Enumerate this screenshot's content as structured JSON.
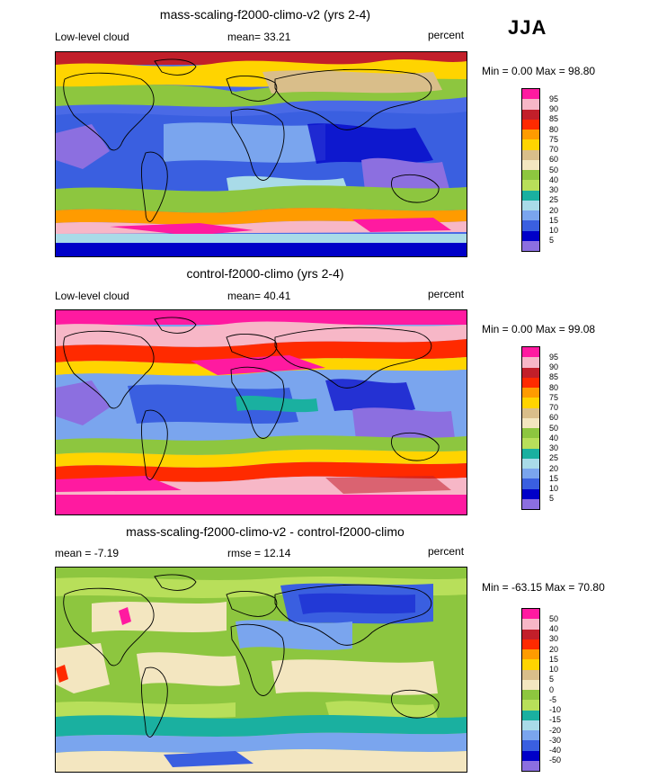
{
  "season": "JJA",
  "panels": [
    {
      "title": "mass-scaling-f2000-climo-v2 (yrs 2-4)",
      "left_label": "Low-level cloud",
      "center_label": "mean=  33.21",
      "right_label": "percent",
      "minmax": "Min =   0.00 Max =  98.80",
      "levels": [
        "95",
        "90",
        "85",
        "80",
        "75",
        "70",
        "60",
        "50",
        "40",
        "30",
        "25",
        "20",
        "15",
        "10",
        "5"
      ],
      "colors": [
        "#ff1aa0",
        "#f7b7c7",
        "#c21f2a",
        "#ff2a00",
        "#ff9b00",
        "#ffd400",
        "#d9be8a",
        "#f3e6c0",
        "#8dc63f",
        "#b8df5a",
        "#1ab0a0",
        "#a9dbe8",
        "#7aa5ee",
        "#3a5fe0",
        "#0000c8",
        "#8c6fe0"
      ]
    },
    {
      "title": "control-f2000-climo (yrs 2-4)",
      "left_label": "Low-level cloud",
      "center_label": "mean=  40.41",
      "right_label": "percent",
      "minmax": "Min =   0.00 Max =  99.08",
      "levels": [
        "95",
        "90",
        "85",
        "80",
        "75",
        "70",
        "60",
        "50",
        "40",
        "30",
        "25",
        "20",
        "15",
        "10",
        "5"
      ],
      "colors": [
        "#ff1aa0",
        "#f7b7c7",
        "#c21f2a",
        "#ff2a00",
        "#ff9b00",
        "#ffd400",
        "#d9be8a",
        "#f3e6c0",
        "#8dc63f",
        "#b8df5a",
        "#1ab0a0",
        "#a9dbe8",
        "#7aa5ee",
        "#3a5fe0",
        "#0000c8",
        "#8c6fe0"
      ]
    },
    {
      "title": "mass-scaling-f2000-climo-v2 - control-f2000-climo",
      "left_label": "mean =  -7.19",
      "center_label": "rmse =  12.14",
      "right_label": "percent",
      "minmax": "Min = -63.15 Max =  70.80",
      "levels": [
        "50",
        "40",
        "30",
        "20",
        "15",
        "10",
        "5",
        "0",
        "-5",
        "-10",
        "-15",
        "-20",
        "-30",
        "-40",
        "-50"
      ],
      "colors": [
        "#ff1aa0",
        "#f7b7c7",
        "#c21f2a",
        "#ff2a00",
        "#ff9b00",
        "#ffd400",
        "#d9be8a",
        "#f3e6c0",
        "#8dc63f",
        "#b8df5a",
        "#1ab0a0",
        "#a9dbe8",
        "#7aa5ee",
        "#3a5fe0",
        "#0000c8",
        "#8c6fe0"
      ]
    }
  ],
  "chart_data": [
    {
      "type": "heatmap",
      "title": "mass-scaling-f2000-climo-v2 (yrs 2-4)",
      "variable": "Low-level cloud",
      "units": "percent",
      "season": "JJA",
      "mean": 33.21,
      "min": 0.0,
      "max": 98.8,
      "contour_levels": [
        5,
        10,
        15,
        20,
        25,
        30,
        40,
        50,
        60,
        70,
        75,
        80,
        85,
        90,
        95
      ]
    },
    {
      "type": "heatmap",
      "title": "control-f2000-climo (yrs 2-4)",
      "variable": "Low-level cloud",
      "units": "percent",
      "season": "JJA",
      "mean": 40.41,
      "min": 0.0,
      "max": 99.08,
      "contour_levels": [
        5,
        10,
        15,
        20,
        25,
        30,
        40,
        50,
        60,
        70,
        75,
        80,
        85,
        90,
        95
      ]
    },
    {
      "type": "heatmap",
      "title": "mass-scaling-f2000-climo-v2 - control-f2000-climo",
      "units": "percent",
      "season": "JJA",
      "mean": -7.19,
      "rmse": 12.14,
      "min": -63.15,
      "max": 70.8,
      "contour_levels": [
        -50,
        -40,
        -30,
        -20,
        -15,
        -10,
        -5,
        0,
        5,
        10,
        15,
        20,
        30,
        40,
        50
      ]
    }
  ]
}
